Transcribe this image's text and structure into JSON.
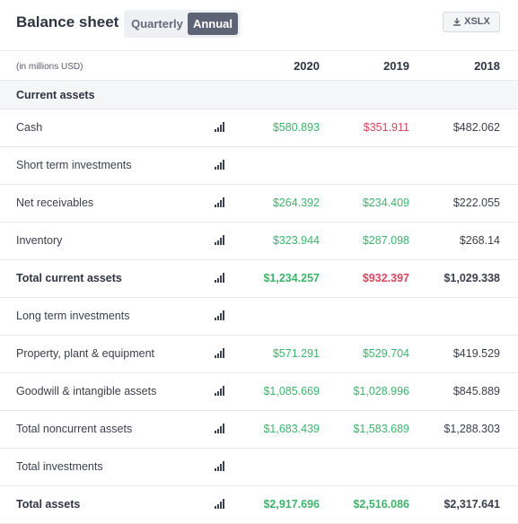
{
  "header": {
    "title": "Balance sheet",
    "period_options": [
      "Quarterly",
      "Annual"
    ],
    "selected_period": "Annual",
    "export_label": "XSLX",
    "export_icon": "download-icon"
  },
  "table": {
    "units_label": "(in millions USD)",
    "years": [
      "2020",
      "2019",
      "2018"
    ],
    "section_title": "Current assets",
    "row_icon": "bar-chart-icon",
    "colors": {
      "increase": "#3eb36c",
      "decrease": "#d9455f",
      "neutral": "#3a3f4b"
    },
    "rows": [
      {
        "label": "Cash",
        "total": false,
        "values": [
          "$580.893",
          "$351.911",
          "$482.062"
        ],
        "trend": [
          "up",
          "down",
          "flat"
        ]
      },
      {
        "label": "Short term investments",
        "total": false,
        "values": [
          "",
          "",
          ""
        ],
        "trend": [
          "flat",
          "flat",
          "flat"
        ]
      },
      {
        "label": "Net receivables",
        "total": false,
        "values": [
          "$264.392",
          "$234.409",
          "$222.055"
        ],
        "trend": [
          "up",
          "up",
          "flat"
        ]
      },
      {
        "label": "Inventory",
        "total": false,
        "values": [
          "$323.944",
          "$287.098",
          "$268.14"
        ],
        "trend": [
          "up",
          "up",
          "flat"
        ]
      },
      {
        "label": "Total current assets",
        "total": true,
        "values": [
          "$1,234.257",
          "$932.397",
          "$1,029.338"
        ],
        "trend": [
          "up",
          "down",
          "flat"
        ]
      },
      {
        "label": "Long term investments",
        "total": false,
        "values": [
          "",
          "",
          ""
        ],
        "trend": [
          "flat",
          "flat",
          "flat"
        ]
      },
      {
        "label": "Property, plant & equipment",
        "total": false,
        "values": [
          "$571.291",
          "$529.704",
          "$419.529"
        ],
        "trend": [
          "up",
          "up",
          "flat"
        ]
      },
      {
        "label": "Goodwill & intangible assets",
        "total": false,
        "values": [
          "$1,085.669",
          "$1,028.996",
          "$845.889"
        ],
        "trend": [
          "up",
          "up",
          "flat"
        ]
      },
      {
        "label": "Total noncurrent assets",
        "total": false,
        "values": [
          "$1,683.439",
          "$1,583.689",
          "$1,288.303"
        ],
        "trend": [
          "up",
          "up",
          "flat"
        ]
      },
      {
        "label": "Total investments",
        "total": false,
        "values": [
          "",
          "",
          ""
        ],
        "trend": [
          "flat",
          "flat",
          "flat"
        ]
      },
      {
        "label": "Total assets",
        "total": true,
        "values": [
          "$2,917.696",
          "$2,516.086",
          "$2,317.641"
        ],
        "trend": [
          "up",
          "up",
          "flat"
        ]
      }
    ]
  }
}
